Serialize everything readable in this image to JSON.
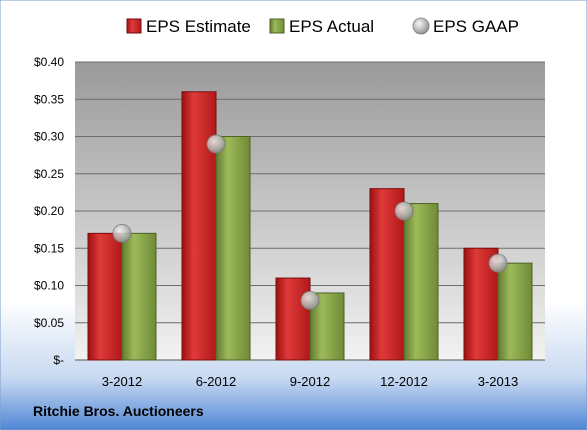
{
  "chart_data": {
    "type": "bar",
    "categories": [
      "3-2012",
      "6-2012",
      "9-2012",
      "12-2012",
      "3-2013"
    ],
    "series": [
      {
        "name": "EPS Estimate",
        "kind": "bar",
        "color": "#d42a2a",
        "values": [
          0.17,
          0.36,
          0.11,
          0.23,
          0.15
        ]
      },
      {
        "name": "EPS Actual",
        "kind": "bar",
        "color": "#8fae4e",
        "values": [
          0.17,
          0.3,
          0.09,
          0.21,
          0.13
        ]
      },
      {
        "name": "EPS GAAP",
        "kind": "marker",
        "color": "#b8b8b8",
        "values": [
          0.17,
          0.29,
          0.08,
          0.2,
          0.13
        ]
      }
    ],
    "ylim": [
      0,
      0.4
    ],
    "yticks": [
      0,
      0.05,
      0.1,
      0.15,
      0.2,
      0.25,
      0.3,
      0.35,
      0.4
    ],
    "ytick_labels": [
      "$-",
      "$0.05",
      "$0.10",
      "$0.15",
      "$0.20",
      "$0.25",
      "$0.30",
      "$0.35",
      "$0.40"
    ],
    "grid": true,
    "legend": "top",
    "caption": "Ritchie Bros. Auctioneers"
  }
}
